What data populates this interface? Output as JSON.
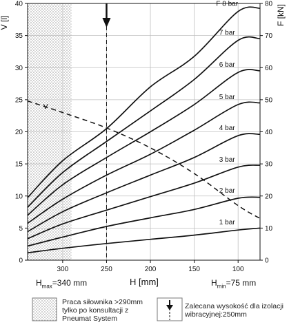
{
  "chart_data": {
    "type": "line",
    "left_axis": {
      "label": "V [l]",
      "ticks": [
        0,
        5,
        10,
        15,
        20,
        25,
        30,
        35,
        40
      ],
      "range": [
        0,
        40
      ]
    },
    "right_axis": {
      "label": "F [kN]",
      "ticks": [
        0,
        10,
        20,
        30,
        40,
        50,
        60,
        70,
        80
      ],
      "range": [
        0,
        80
      ]
    },
    "x_axis": {
      "label": "H [mm]",
      "ticks": [
        300,
        250,
        200,
        150,
        100
      ],
      "range": [
        340,
        75
      ],
      "reversed": true
    },
    "hmax_label": "H",
    "hmax_sub": "max",
    "hmax_value": "=340 mm",
    "hmin_label": "H",
    "hmin_sub": "min",
    "hmin_value": "=75 mm",
    "force_series_axis": "right",
    "series": [
      {
        "name": "1 bar",
        "x": [
          340,
          300,
          250,
          200,
          150,
          100,
          75
        ],
        "y": [
          2.3,
          3.7,
          5.2,
          6.5,
          7.8,
          9.4,
          10
        ]
      },
      {
        "name": "2 bar",
        "x": [
          340,
          300,
          250,
          200,
          150,
          100,
          75
        ],
        "y": [
          4.4,
          7.2,
          10.5,
          13.2,
          15.8,
          19.3,
          19.6
        ]
      },
      {
        "name": "3 bar",
        "x": [
          340,
          300,
          250,
          200,
          150,
          100,
          75
        ],
        "y": [
          6.7,
          11.3,
          15.6,
          19.8,
          24,
          29,
          29.6
        ]
      },
      {
        "name": "4 bar",
        "x": [
          340,
          300,
          250,
          200,
          150,
          100,
          75
        ],
        "y": [
          8.9,
          15.1,
          21,
          26.5,
          32,
          38.8,
          39.2
        ]
      },
      {
        "name": "5 bar",
        "x": [
          340,
          300,
          250,
          200,
          150,
          100,
          75
        ],
        "y": [
          11.5,
          19,
          26.5,
          33,
          40.5,
          48.5,
          49
        ]
      },
      {
        "name": "6 bar",
        "x": [
          340,
          300,
          250,
          200,
          150,
          100,
          75
        ],
        "y": [
          14,
          23.5,
          32,
          40,
          48.5,
          58.5,
          59
        ]
      },
      {
        "name": "7 bar",
        "x": [
          340,
          300,
          250,
          200,
          150,
          100,
          75
        ],
        "y": [
          16.5,
          27.3,
          37,
          46.5,
          56.3,
          68.5,
          69
        ]
      },
      {
        "name": "F 8 bar",
        "x": [
          340,
          300,
          250,
          200,
          150,
          100,
          75
        ],
        "y": [
          19.5,
          31,
          41,
          54,
          63.5,
          77.5,
          78.5
        ]
      }
    ],
    "volume_series": {
      "name": "V",
      "axis": "left",
      "style": "dashed",
      "x": [
        340,
        300,
        250,
        200,
        150,
        100,
        75
      ],
      "y": [
        24.8,
        23,
        20.6,
        17.5,
        13.5,
        8.5,
        6.5
      ]
    },
    "recommended_height": 250,
    "restricted_zone": [
      340,
      290
    ]
  },
  "legend": {
    "restricted_text_1": "Praca siłownika >290mm",
    "restricted_text_2": "tylko po konsultacji z",
    "restricted_text_3": "Pneumat System",
    "recommended_text_1": "Zalecana wysokość dla izolacji",
    "recommended_text_2": "wibracyjnej:250mm"
  },
  "colors": {
    "line": "#111111",
    "hatch": "#9a9a9a",
    "grid": "#bfbfbf"
  }
}
